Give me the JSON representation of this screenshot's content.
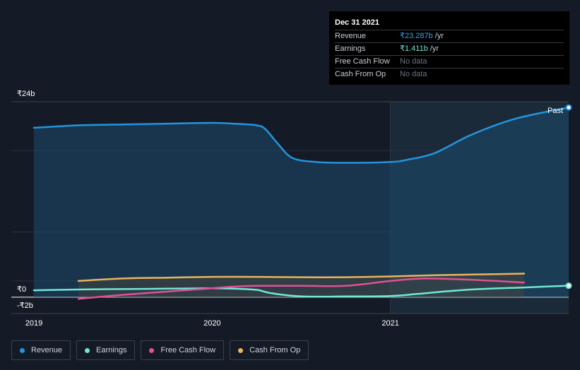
{
  "tooltip": {
    "date": "Dec 31 2021",
    "rows": [
      {
        "label": "Revenue",
        "value": "₹23.287b",
        "unit": "/yr",
        "color": "#3ea0e4"
      },
      {
        "label": "Earnings",
        "value": "₹1.411b",
        "unit": "/yr",
        "color": "#71e7d6"
      },
      {
        "label": "Free Cash Flow",
        "value": "No data"
      },
      {
        "label": "Cash From Op",
        "value": "No data"
      }
    ]
  },
  "legend": [
    {
      "label": "Revenue",
      "color": "#2394df"
    },
    {
      "label": "Earnings",
      "color": "#71e7d6"
    },
    {
      "label": "Free Cash Flow",
      "color": "#e05194"
    },
    {
      "label": "Cash From Op",
      "color": "#e9b45b"
    }
  ],
  "chart_data": {
    "type": "line",
    "y_tick_labels": [
      "₹24b",
      "₹0",
      "-₹2b"
    ],
    "x_tick_labels": [
      "2019",
      "2020",
      "2021"
    ],
    "past_label": "Past",
    "ylim": [
      -2,
      24
    ],
    "xlim": [
      2019.0,
      2022.0
    ],
    "highlight_start": 2021.0,
    "series": [
      {
        "name": "Revenue",
        "color": "#2394df",
        "area": true,
        "x": [
          2019.0,
          2019.25,
          2019.5,
          2019.75,
          2020.0,
          2020.12,
          2020.25,
          2020.3,
          2020.37,
          2020.45,
          2020.58,
          2020.75,
          2021.0,
          2021.1,
          2021.25,
          2021.45,
          2021.7,
          2022.0
        ],
        "y": [
          20.8,
          21.1,
          21.2,
          21.3,
          21.4,
          21.3,
          21.1,
          20.6,
          18.8,
          17.1,
          16.6,
          16.5,
          16.6,
          16.9,
          17.7,
          19.9,
          21.9,
          23.287
        ]
      },
      {
        "name": "Earnings",
        "color": "#71e7d6",
        "area": false,
        "x": [
          2019.0,
          2019.25,
          2019.5,
          2019.75,
          2020.0,
          2020.12,
          2020.25,
          2020.33,
          2020.5,
          2020.75,
          2021.0,
          2021.15,
          2021.3,
          2021.5,
          2021.75,
          2022.0
        ],
        "y": [
          0.85,
          0.95,
          1.0,
          1.05,
          1.1,
          1.05,
          0.9,
          0.5,
          0.1,
          0.1,
          0.15,
          0.4,
          0.7,
          1.0,
          1.2,
          1.411
        ]
      },
      {
        "name": "Free Cash Flow",
        "color": "#e05194",
        "area": false,
        "x": [
          2019.25,
          2019.5,
          2019.75,
          2020.0,
          2020.12,
          2020.25,
          2020.5,
          2020.75,
          2021.0,
          2021.2,
          2021.5,
          2021.75
        ],
        "y": [
          -0.2,
          0.3,
          0.7,
          1.1,
          1.3,
          1.4,
          1.4,
          1.4,
          2.0,
          2.3,
          2.1,
          1.8
        ]
      },
      {
        "name": "Cash From Op",
        "color": "#e9b45b",
        "area": false,
        "x": [
          2019.25,
          2019.5,
          2019.75,
          2020.0,
          2020.25,
          2020.5,
          2020.75,
          2021.0,
          2021.25,
          2021.5,
          2021.75
        ],
        "y": [
          2.0,
          2.3,
          2.4,
          2.5,
          2.5,
          2.45,
          2.45,
          2.55,
          2.7,
          2.8,
          2.9
        ]
      }
    ]
  }
}
